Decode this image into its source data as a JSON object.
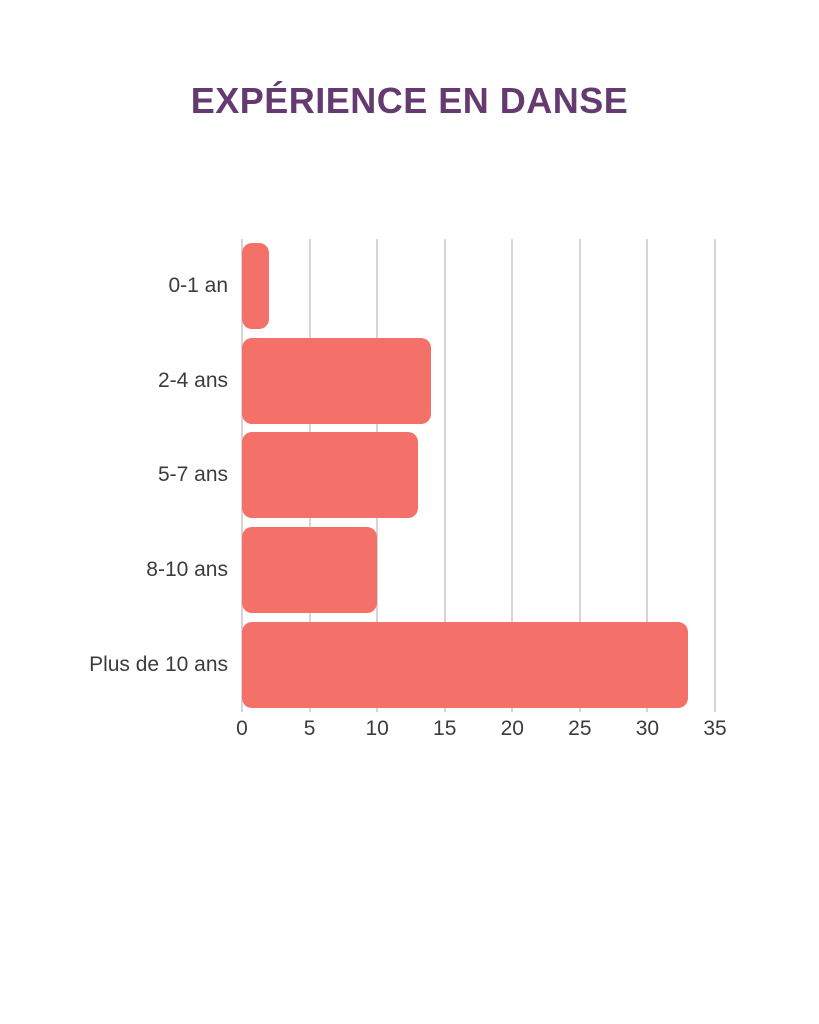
{
  "title": "EXPÉRIENCE EN DANSE",
  "chart_data": {
    "type": "bar",
    "orientation": "horizontal",
    "title": "EXPÉRIENCE EN DANSE",
    "categories": [
      "0-1 an",
      "2-4 ans",
      "5-7 ans",
      "8-10 ans",
      "Plus de 10 ans"
    ],
    "values": [
      2,
      14,
      13,
      10,
      33
    ],
    "xlabel": "",
    "ylabel": "",
    "xlim": [
      0,
      35
    ],
    "xticks": [
      0,
      5,
      10,
      15,
      20,
      25,
      30,
      35
    ],
    "grid": true,
    "legend": false,
    "colors": {
      "bar": "#f4716a",
      "gridline": "#d6d6d6",
      "title": "#653a70",
      "label": "#3c3c3c",
      "background": "#ffffff"
    }
  }
}
